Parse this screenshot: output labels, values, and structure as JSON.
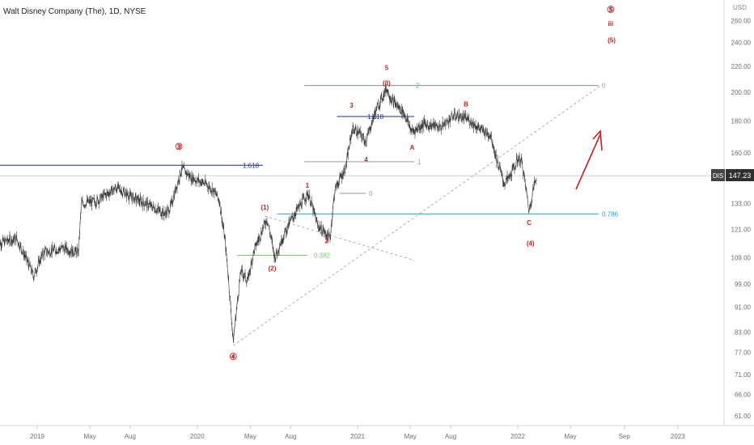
{
  "header": {
    "title": "Walt Disney Company (The), 1D, NYSE"
  },
  "price_axis": {
    "currency": "USD",
    "ticks": [
      "260.00",
      "240.00",
      "220.00",
      "200.00",
      "180.00",
      "160.00",
      "147.23",
      "133.00",
      "121.00",
      "109.00",
      "99.00",
      "91.00",
      "83.00",
      "77.00",
      "71.00",
      "66.00",
      "61.00"
    ]
  },
  "time_axis": {
    "ticks": [
      "2019",
      "May",
      "Aug",
      "2020",
      "May",
      "Aug",
      "2021",
      "May",
      "Aug",
      "2022",
      "May",
      "Sep",
      "2023"
    ]
  },
  "last_price": {
    "symbol": "DIS",
    "value": "147.23"
  },
  "colors": {
    "wave_red": "#cc1f1f",
    "fib_navy": "#1c2f9c",
    "fib_teal": "#43c3a0",
    "fib_light_blue": "#2f9fd1",
    "fib_green": "#7bc86c",
    "fib_gray": "#9a9a9a",
    "price_bar": "#333333"
  },
  "chart_data": {
    "type": "line",
    "title": "Walt Disney Company (The), 1D, NYSE",
    "xlabel": "",
    "ylabel": "USD",
    "ylim": [
      58,
      265
    ],
    "scale": "log",
    "series": [
      {
        "points": [
          [
            "2018-10-01",
            115
          ],
          [
            "2018-11-15",
            117
          ],
          [
            "2018-12-24",
            102
          ],
          [
            "2019-01-15",
            111
          ],
          [
            "2019-03-01",
            113
          ],
          [
            "2019-04-05",
            111
          ],
          [
            "2019-04-12",
            133
          ],
          [
            "2019-05-15",
            134
          ],
          [
            "2019-07-01",
            141
          ],
          [
            "2019-08-05",
            136
          ],
          [
            "2019-09-15",
            132
          ],
          [
            "2019-10-20",
            128
          ],
          [
            "2019-11-01",
            131
          ],
          [
            "2019-11-27",
            151
          ],
          [
            "2019-12-20",
            146
          ],
          [
            "2020-01-20",
            143
          ],
          [
            "2020-02-05",
            140
          ],
          [
            "2020-02-20",
            135
          ],
          [
            "2020-03-05",
            115
          ],
          [
            "2020-03-23",
            80
          ],
          [
            "2020-04-10",
            104
          ],
          [
            "2020-04-25",
            100
          ],
          [
            "2020-05-10",
            112
          ],
          [
            "2020-06-08",
            126
          ],
          [
            "2020-06-26",
            109
          ],
          [
            "2020-07-15",
            118
          ],
          [
            "2020-08-10",
            128
          ],
          [
            "2020-09-10",
            138
          ],
          [
            "2020-10-01",
            123
          ],
          [
            "2020-10-30",
            117
          ],
          [
            "2020-11-10",
            140
          ],
          [
            "2020-12-05",
            152
          ],
          [
            "2020-12-20",
            175
          ],
          [
            "2021-01-05",
            172
          ],
          [
            "2021-01-20",
            167
          ],
          [
            "2021-02-10",
            186
          ],
          [
            "2021-03-08",
            203
          ],
          [
            "2021-03-20",
            194
          ],
          [
            "2021-04-15",
            186
          ],
          [
            "2021-05-05",
            173
          ],
          [
            "2021-06-01",
            178
          ],
          [
            "2021-07-10",
            176
          ],
          [
            "2021-08-10",
            184
          ],
          [
            "2021-09-10",
            181
          ],
          [
            "2021-10-10",
            174
          ],
          [
            "2021-11-01",
            171
          ],
          [
            "2021-11-12",
            158
          ],
          [
            "2021-12-01",
            143
          ],
          [
            "2021-12-15",
            147
          ],
          [
            "2022-01-02",
            157
          ],
          [
            "2022-01-10",
            155
          ],
          [
            "2022-01-20",
            140
          ],
          [
            "2022-01-27",
            129
          ],
          [
            "2022-02-05",
            140
          ],
          [
            "2022-02-13",
            147
          ]
        ]
      }
    ],
    "fib_levels": [
      {
        "label": "1.618",
        "value": 153,
        "color": "fib_navy",
        "line_start": "2018-09-01"
      },
      {
        "label": "1.618",
        "value": 183,
        "color": "fib_navy",
        "line_start": "2020-11-15"
      },
      {
        "label": "2",
        "value": 205,
        "color": "fib_teal",
        "line_start": "2020-09-01"
      },
      {
        "label": "0",
        "value": 205,
        "color": "fib_gray",
        "line_start": "2020-09-01"
      },
      {
        "label": "1",
        "value": 155,
        "color": "fib_gray",
        "line_start": "2020-09-01"
      },
      {
        "label": "0",
        "value": 138,
        "color": "fib_gray",
        "line_start": "2020-11-20"
      },
      {
        "label": "0.786",
        "value": 128,
        "color": "fib_light_blue",
        "line_start": "2020-07-01"
      },
      {
        "label": "0.382",
        "value": 110,
        "color": "fib_green",
        "line_start": "2020-04-01"
      }
    ],
    "wave_labels": [
      {
        "text": "③",
        "x": "2019-11-20",
        "y": 162
      },
      {
        "text": "④",
        "x": "2020-03-23",
        "y": 75
      },
      {
        "text": "(1)",
        "x": "2020-06-03",
        "y": 130
      },
      {
        "text": "(2)",
        "x": "2020-06-20",
        "y": 104
      },
      {
        "text": "1",
        "x": "2020-09-08",
        "y": 141
      },
      {
        "text": "2",
        "x": "2020-10-22",
        "y": 115
      },
      {
        "text": "3",
        "x": "2020-12-18",
        "y": 189
      },
      {
        "text": "4",
        "x": "2021-01-20",
        "y": 155
      },
      {
        "text": "5",
        "x": "2021-03-08",
        "y": 217
      },
      {
        "text": "(3)",
        "x": "2021-03-08",
        "y": 205
      },
      {
        "text": "A",
        "x": "2021-05-05",
        "y": 162
      },
      {
        "text": "B",
        "x": "2021-09-05",
        "y": 190
      },
      {
        "text": "C",
        "x": "2022-01-27",
        "y": 123
      },
      {
        "text": "(4)",
        "x": "2022-01-30",
        "y": 114
      },
      {
        "text": "⑤",
        "x": "2022-08-01",
        "y": 268
      },
      {
        "text": "iii",
        "x": "2022-08-01",
        "y": 255
      },
      {
        "text": "(5)",
        "x": "2022-08-03",
        "y": 240
      }
    ]
  }
}
